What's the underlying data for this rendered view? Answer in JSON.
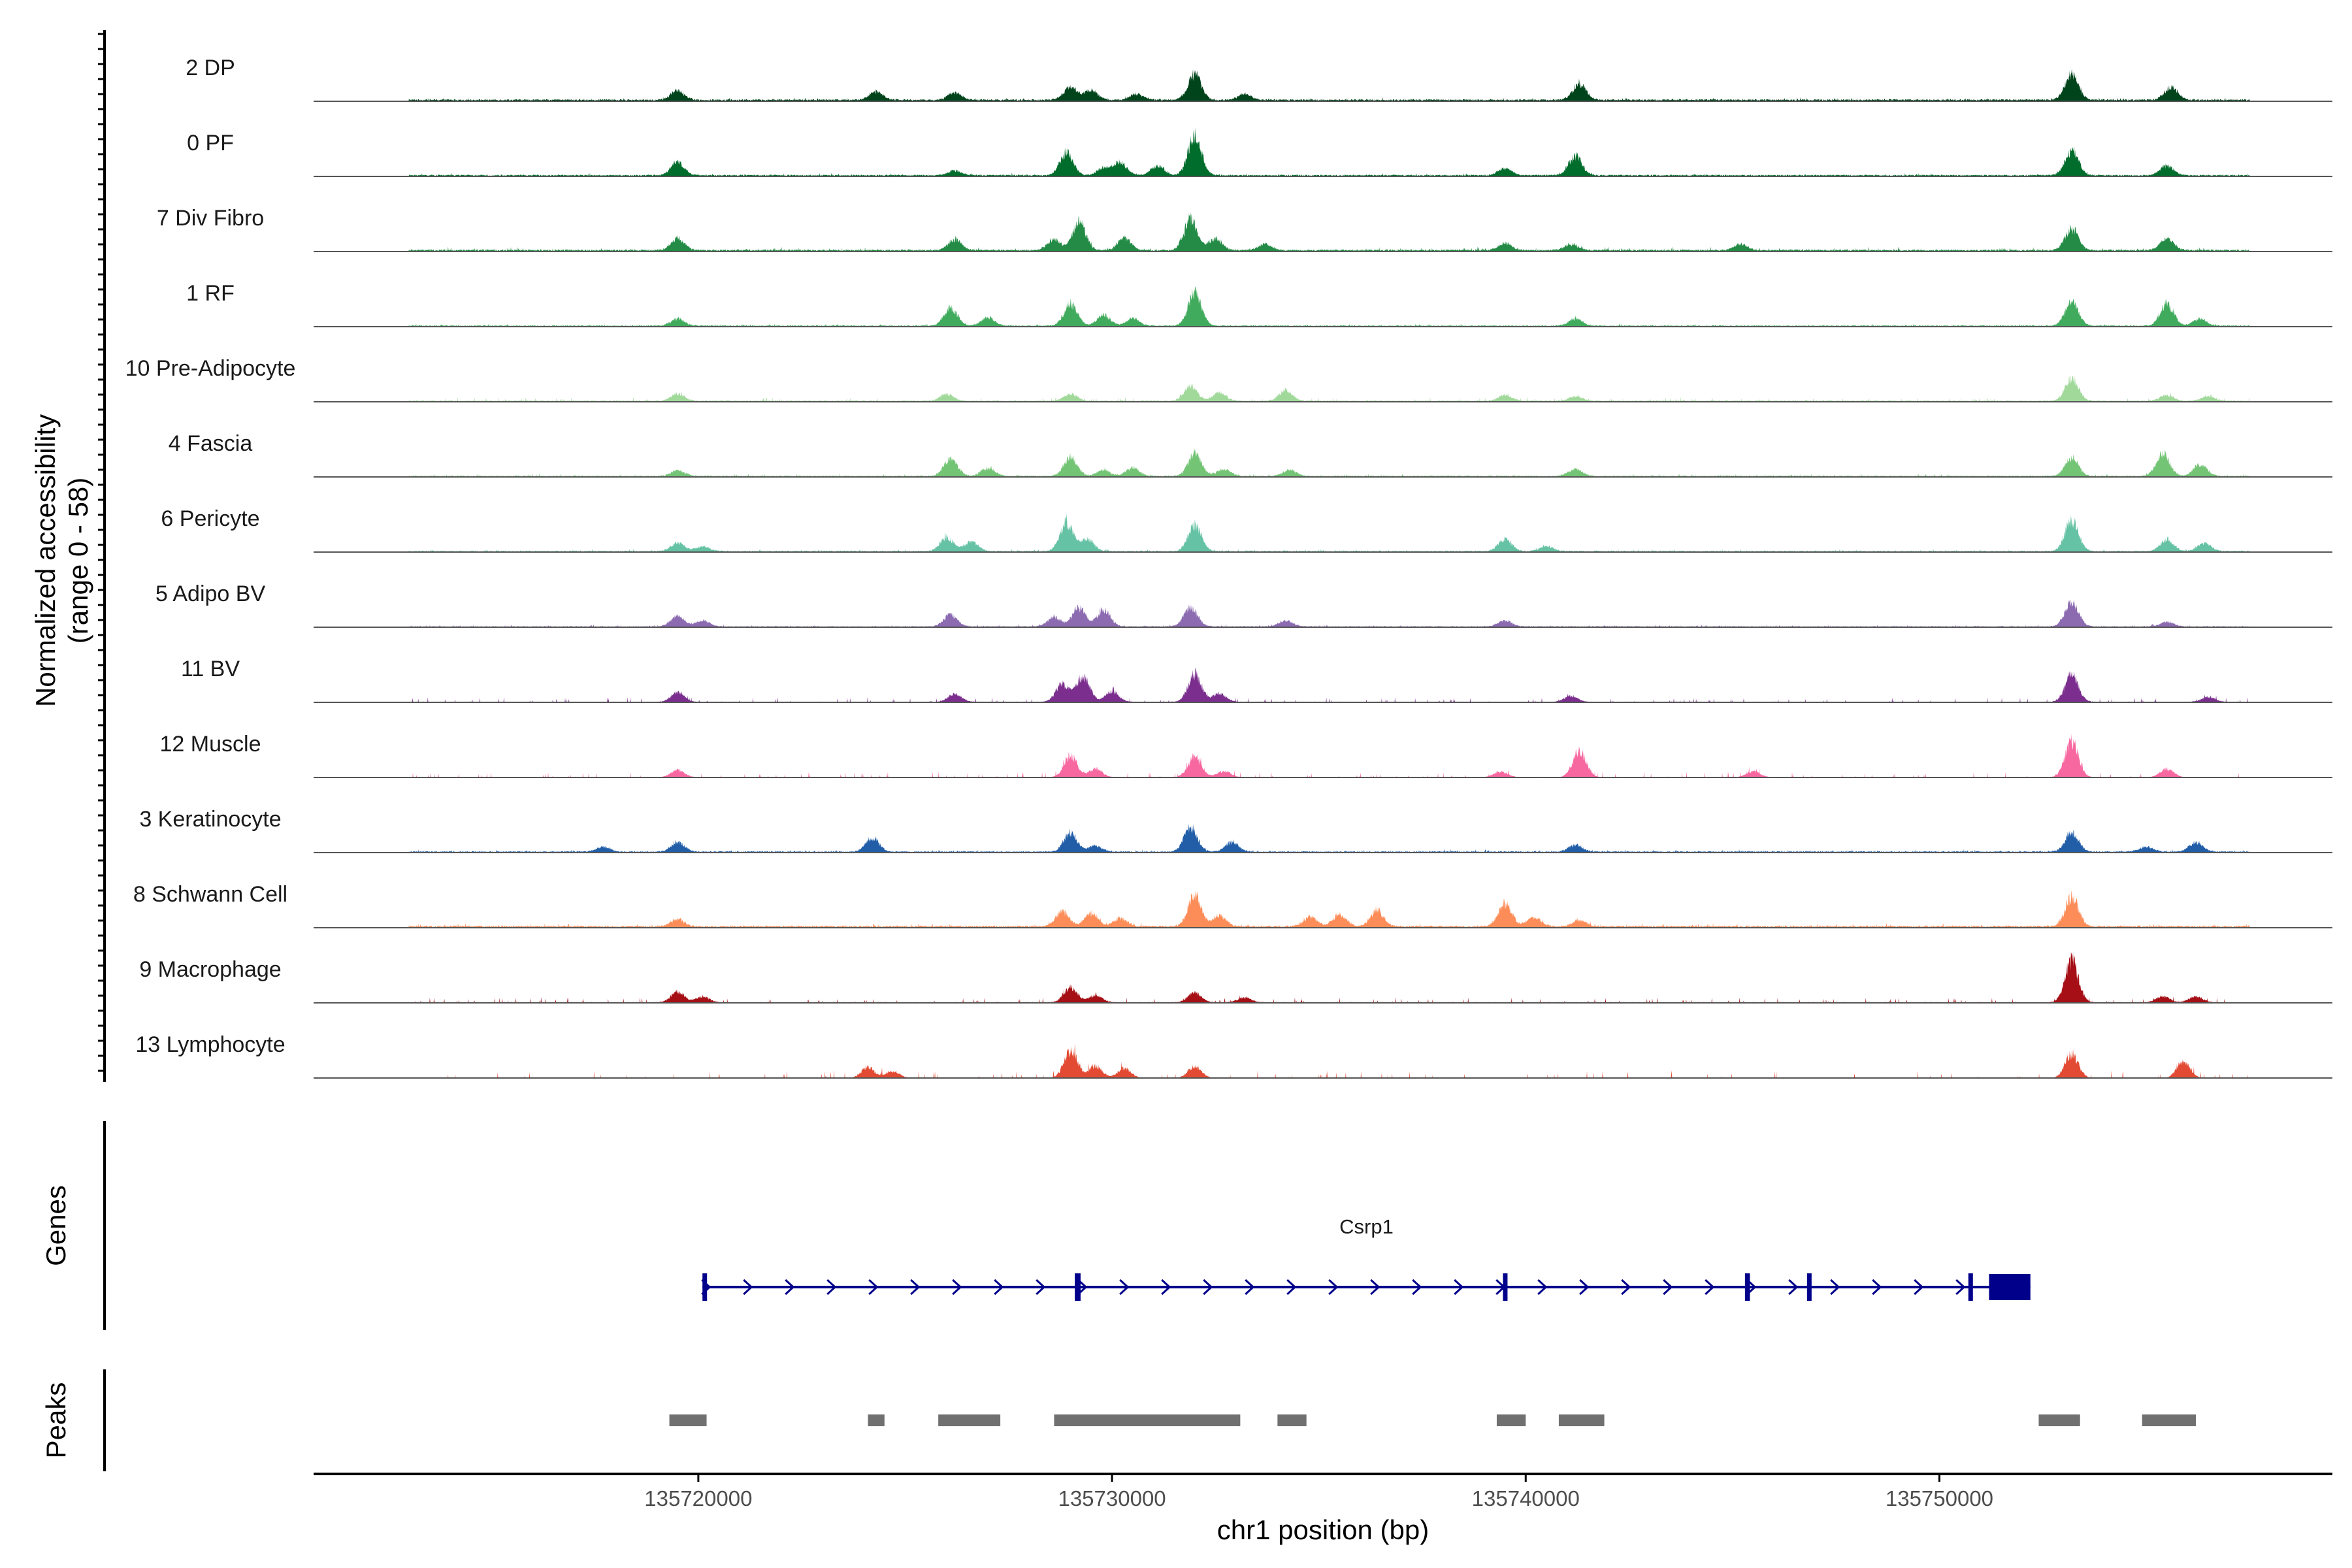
{
  "chart_data": {
    "type": "area",
    "title": "",
    "chromosome": "chr1",
    "xlabel": "chr1 position (bp)",
    "ylabel": "Normalized accessibility",
    "ylabel_range": "(range 0 - 58)",
    "y_range": [
      0,
      58
    ],
    "xlim": [
      135710700,
      135759500
    ],
    "x_ticks": [
      135720000,
      135730000,
      135740000,
      135750000
    ],
    "x_tick_labels": [
      "135720000",
      "135730000",
      "135740000",
      "135750000"
    ],
    "coverage_start": 135713000,
    "coverage_end": 135757500,
    "series": [
      {
        "name": "2 DP",
        "color": "#00441b",
        "base": 1.5,
        "noise": 0.6,
        "peaks": [
          [
            135719500,
            8
          ],
          [
            135724300,
            7
          ],
          [
            135726200,
            6
          ],
          [
            135729000,
            11
          ],
          [
            135729500,
            8
          ],
          [
            135730600,
            5
          ],
          [
            135732000,
            22
          ],
          [
            135733200,
            5
          ],
          [
            135741300,
            13
          ],
          [
            135753200,
            22
          ],
          [
            135755600,
            11
          ]
        ]
      },
      {
        "name": "0 PF",
        "color": "#006d2c",
        "base": 1.2,
        "noise": 0.6,
        "peaks": [
          [
            135719500,
            11
          ],
          [
            135726200,
            4
          ],
          [
            135728900,
            19
          ],
          [
            135729800,
            6
          ],
          [
            135730200,
            11
          ],
          [
            135731100,
            8
          ],
          [
            135732000,
            34
          ],
          [
            135739500,
            6
          ],
          [
            135741200,
            16
          ],
          [
            135753200,
            21
          ],
          [
            135755500,
            8
          ]
        ]
      },
      {
        "name": "7 Div Fibro",
        "color": "#238b45",
        "base": 1.5,
        "noise": 0.9,
        "peaks": [
          [
            135719500,
            10
          ],
          [
            135726200,
            9
          ],
          [
            135728600,
            9
          ],
          [
            135729200,
            24
          ],
          [
            135730300,
            10
          ],
          [
            135731900,
            26
          ],
          [
            135732500,
            10
          ],
          [
            135733700,
            5
          ],
          [
            135739500,
            6
          ],
          [
            135741100,
            5
          ],
          [
            135745200,
            5
          ],
          [
            135753200,
            18
          ],
          [
            135755500,
            10
          ]
        ]
      },
      {
        "name": "1 RF",
        "color": "#41ab5d",
        "base": 1.0,
        "noise": 0.5,
        "peaks": [
          [
            135719500,
            6
          ],
          [
            135726100,
            15
          ],
          [
            135727000,
            7
          ],
          [
            135729000,
            19
          ],
          [
            135729800,
            9
          ],
          [
            135730500,
            6
          ],
          [
            135732000,
            28
          ],
          [
            135741200,
            6
          ],
          [
            135753200,
            20
          ],
          [
            135755500,
            19
          ],
          [
            135756300,
            6
          ]
        ]
      },
      {
        "name": "10 Pre-Adipocyte",
        "color": "#a1d99b",
        "base": 1.0,
        "noise": 1.0,
        "peaks": [
          [
            135719500,
            6
          ],
          [
            135726000,
            6
          ],
          [
            135729000,
            6
          ],
          [
            135731900,
            12
          ],
          [
            135732600,
            7
          ],
          [
            135734200,
            9
          ],
          [
            135739500,
            5
          ],
          [
            135741200,
            4
          ],
          [
            135753200,
            19
          ],
          [
            135755500,
            5
          ],
          [
            135756500,
            4
          ]
        ]
      },
      {
        "name": "4 Fascia",
        "color": "#74c476",
        "base": 1.0,
        "noise": 0.6,
        "peaks": [
          [
            135719500,
            5
          ],
          [
            135726100,
            15
          ],
          [
            135727000,
            7
          ],
          [
            135729000,
            16
          ],
          [
            135729800,
            5
          ],
          [
            135730500,
            7
          ],
          [
            135732000,
            19
          ],
          [
            135732700,
            6
          ],
          [
            135734300,
            5
          ],
          [
            135741200,
            6
          ],
          [
            135753200,
            15
          ],
          [
            135755400,
            19
          ],
          [
            135756300,
            10
          ]
        ]
      },
      {
        "name": "6 Pericyte",
        "color": "#66c2a4",
        "base": 1.0,
        "noise": 0.6,
        "peaks": [
          [
            135719500,
            7
          ],
          [
            135720100,
            4
          ],
          [
            135726000,
            12
          ],
          [
            135726600,
            8
          ],
          [
            135728900,
            24
          ],
          [
            135729400,
            10
          ],
          [
            135732000,
            22
          ],
          [
            135739500,
            10
          ],
          [
            135740500,
            4
          ],
          [
            135753200,
            26
          ],
          [
            135755500,
            10
          ],
          [
            135756400,
            7
          ]
        ]
      },
      {
        "name": "5 Adipo BV",
        "color": "#8c6bb1",
        "base": 0.8,
        "noise": 0.6,
        "peaks": [
          [
            135719500,
            9
          ],
          [
            135720100,
            5
          ],
          [
            135726100,
            10
          ],
          [
            135728600,
            8
          ],
          [
            135729200,
            16
          ],
          [
            135729800,
            14
          ],
          [
            135731900,
            16
          ],
          [
            135734200,
            5
          ],
          [
            135739500,
            5
          ],
          [
            135753200,
            21
          ],
          [
            135755500,
            4
          ]
        ]
      },
      {
        "name": "11 BV",
        "color": "#7b2e8e",
        "base": 0.5,
        "noise": 1.3,
        "peaks": [
          [
            135719500,
            8
          ],
          [
            135726200,
            7
          ],
          [
            135728800,
            15
          ],
          [
            135729300,
            22
          ],
          [
            135730000,
            9
          ],
          [
            135732000,
            23
          ],
          [
            135732600,
            7
          ],
          [
            135741100,
            5
          ],
          [
            135753200,
            23
          ],
          [
            135756500,
            4
          ]
        ]
      },
      {
        "name": "12 Muscle",
        "color": "#f768a1",
        "base": 0.3,
        "noise": 1.6,
        "peaks": [
          [
            135719500,
            6
          ],
          [
            135729000,
            18
          ],
          [
            135729600,
            7
          ],
          [
            135732000,
            18
          ],
          [
            135732700,
            5
          ],
          [
            135739400,
            5
          ],
          [
            135741300,
            22
          ],
          [
            135745500,
            5
          ],
          [
            135753200,
            30
          ],
          [
            135755500,
            7
          ]
        ]
      },
      {
        "name": "3 Keratinocyte",
        "color": "#225ea8",
        "base": 1.0,
        "noise": 0.6,
        "peaks": [
          [
            135717700,
            4
          ],
          [
            135719500,
            8
          ],
          [
            135724200,
            12
          ],
          [
            135729000,
            16
          ],
          [
            135729600,
            5
          ],
          [
            135731900,
            20
          ],
          [
            135732900,
            8
          ],
          [
            135741200,
            6
          ],
          [
            135753200,
            16
          ],
          [
            135755000,
            4
          ],
          [
            135756200,
            8
          ]
        ]
      },
      {
        "name": "8 Schwann Cell",
        "color": "#fc8d59",
        "base": 1.5,
        "noise": 0.9,
        "peaks": [
          [
            135719500,
            6
          ],
          [
            135728800,
            13
          ],
          [
            135729500,
            11
          ],
          [
            135730200,
            7
          ],
          [
            135732000,
            26
          ],
          [
            135732600,
            9
          ],
          [
            135734800,
            8
          ],
          [
            135735500,
            10
          ],
          [
            135736400,
            13
          ],
          [
            135739500,
            20
          ],
          [
            135740200,
            8
          ],
          [
            135741300,
            5
          ],
          [
            135753200,
            25
          ]
        ]
      },
      {
        "name": "9 Macrophage",
        "color": "#a50f15",
        "base": 0.6,
        "noise": 1.4,
        "peaks": [
          [
            135719500,
            9
          ],
          [
            135720100,
            5
          ],
          [
            135729000,
            13
          ],
          [
            135729600,
            6
          ],
          [
            135732000,
            8
          ],
          [
            135733200,
            4
          ],
          [
            135753200,
            35
          ],
          [
            135755400,
            5
          ],
          [
            135756200,
            5
          ]
        ]
      },
      {
        "name": "13 Lymphocyte",
        "color": "#e34a33",
        "base": 0,
        "noise": 2.4,
        "peaks": [
          [
            135724100,
            9
          ],
          [
            135724700,
            6
          ],
          [
            135729000,
            24
          ],
          [
            135729600,
            10
          ],
          [
            135730300,
            8
          ],
          [
            135732000,
            10
          ],
          [
            135753200,
            20
          ],
          [
            135755900,
            14
          ]
        ]
      }
    ],
    "genes": {
      "title": "Genes",
      "color": "#00008b",
      "items": [
        {
          "name": "Csrp1",
          "strand": "+",
          "start": 135720100,
          "end": 135752200,
          "exons": [
            [
              135720100,
              135720180
            ],
            [
              135729100,
              135729240
            ],
            [
              135739450,
              135739560
            ],
            [
              135745300,
              135745420
            ],
            [
              135746800,
              135746900
            ],
            [
              135750700,
              135750790
            ],
            [
              135751200,
              135752200
            ]
          ]
        }
      ]
    },
    "peaks_track": {
      "title": "Peaks",
      "color": "#707070",
      "regions": [
        [
          135719300,
          135720200
        ],
        [
          135724100,
          135724500
        ],
        [
          135725800,
          135727300
        ],
        [
          135728600,
          135733100
        ],
        [
          135734000,
          135734700
        ],
        [
          135739300,
          135740000
        ],
        [
          135740800,
          135741900
        ],
        [
          135752400,
          135753400
        ],
        [
          135754900,
          135756200
        ]
      ]
    }
  }
}
